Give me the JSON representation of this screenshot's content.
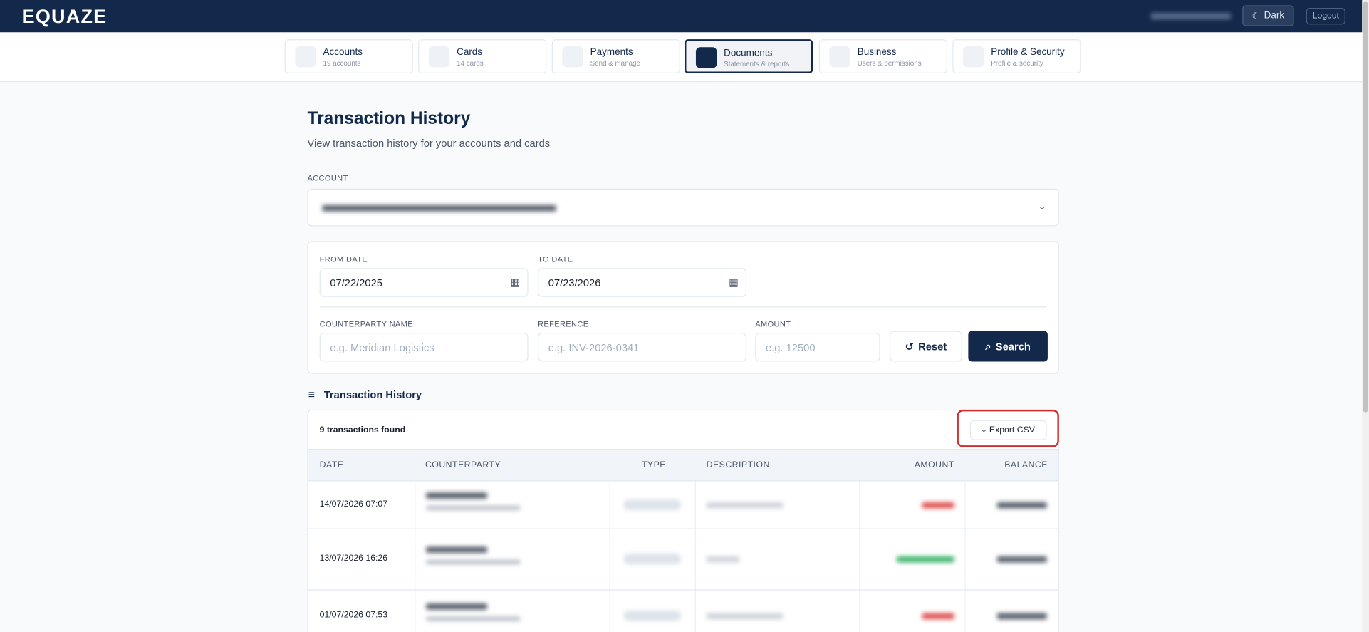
{
  "header": {
    "logo": "EQUAZE",
    "theme_button": "Dark",
    "logout": "Logout"
  },
  "nav": {
    "tabs": [
      {
        "title": "Accounts",
        "subtitle": "19 accounts"
      },
      {
        "title": "Cards",
        "subtitle": "14 cards"
      },
      {
        "title": "Payments",
        "subtitle": "Send & manage"
      },
      {
        "title": "Documents",
        "subtitle": "Statements & reports"
      },
      {
        "title": "Business",
        "subtitle": "Users & permissions"
      },
      {
        "title": "Profile & Security",
        "subtitle": "Profile & security"
      }
    ]
  },
  "page": {
    "title": "Transaction History",
    "subtitle": "View transaction history for your accounts and cards",
    "account_label": "ACCOUNT"
  },
  "filters": {
    "from_label": "FROM DATE",
    "from_value": "07/22/2025",
    "to_label": "TO DATE",
    "to_value": "07/23/2026",
    "counterparty_label": "COUNTERPARTY NAME",
    "counterparty_placeholder": "e.g. Meridian Logistics",
    "reference_label": "REFERENCE",
    "reference_placeholder": "e.g. INV-2026-0341",
    "amount_label": "AMOUNT",
    "amount_placeholder": "e.g. 12500",
    "reset": "Reset",
    "search": "Search"
  },
  "results": {
    "section_title": "Transaction History",
    "count": "9 transactions found",
    "export": "Export CSV",
    "columns": [
      "DATE",
      "COUNTERPARTY",
      "TYPE",
      "DESCRIPTION",
      "AMOUNT",
      "BALANCE"
    ],
    "rows": [
      {
        "date": "14/07/2026 07:07"
      },
      {
        "date": "13/07/2026 16:26"
      },
      {
        "date": "01/07/2026 07:53"
      }
    ]
  }
}
